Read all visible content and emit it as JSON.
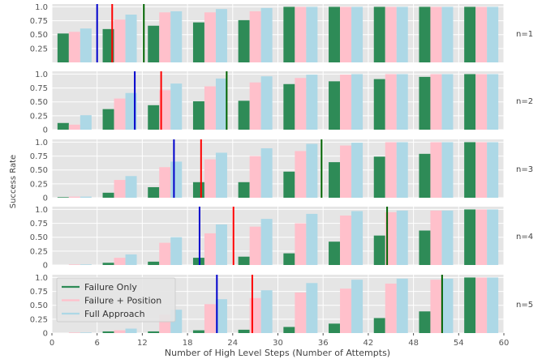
{
  "figure": {
    "xlabel": "Number of High Level Steps (Number of Attempts)",
    "ylabel": "Success Rate"
  },
  "chart_data": {
    "type": "bar",
    "xlim": [
      0,
      60
    ],
    "ylim": [
      0,
      1.05
    ],
    "xticks": [
      0,
      6,
      12,
      18,
      24,
      30,
      36,
      42,
      48,
      54,
      60
    ],
    "tick_labels_top": [
      "0.25",
      "0.50",
      "0.75",
      "1.0"
    ],
    "tick_labels_other": [
      "0",
      "0.25",
      "0.50",
      "0.75",
      "1.0"
    ],
    "grid": true,
    "legend": {
      "location": "upper-left (bottom panel)",
      "entries": [
        "Failure Only",
        "Failure + Position",
        "Full Approach"
      ]
    },
    "colors": {
      "Failure Only": "#2e8b57",
      "Failure + Position": "#ffc0cb",
      "Full Approach": "#add8e6"
    },
    "group_centers": [
      3,
      9,
      15,
      21,
      27,
      33,
      39,
      45,
      51,
      57
    ],
    "panels": [
      {
        "label": "n=1",
        "series": [
          {
            "name": "Failure Only",
            "values": [
              0.52,
              0.6,
              0.66,
              0.72,
              0.76,
              1.0,
              1.0,
              1.0,
              1.0,
              1.0
            ]
          },
          {
            "name": "Failure + Position",
            "values": [
              0.55,
              0.77,
              0.9,
              0.9,
              0.92,
              1.0,
              1.0,
              1.0,
              1.0,
              1.0
            ]
          },
          {
            "name": "Full Approach",
            "values": [
              0.61,
              0.86,
              0.92,
              0.96,
              0.98,
              1.0,
              1.0,
              1.0,
              1.0,
              1.0
            ]
          }
        ],
        "vlines": {
          "Failure Only": 12.2,
          "Failure + Position": 8.0,
          "Full Approach": 6.0
        }
      },
      {
        "label": "n=2",
        "series": [
          {
            "name": "Failure Only",
            "values": [
              0.12,
              0.37,
              0.44,
              0.51,
              0.52,
              0.82,
              0.87,
              0.91,
              0.95,
              1.0
            ]
          },
          {
            "name": "Failure + Position",
            "values": [
              0.09,
              0.56,
              0.71,
              0.78,
              0.85,
              0.93,
              0.99,
              1.0,
              1.0,
              1.0
            ]
          },
          {
            "name": "Full Approach",
            "values": [
              0.26,
              0.66,
              0.83,
              0.92,
              0.96,
              0.99,
              1.0,
              1.0,
              1.0,
              1.0
            ]
          }
        ],
        "vlines": {
          "Failure Only": 23.2,
          "Failure + Position": 14.5,
          "Full Approach": 11.0
        }
      },
      {
        "label": "n=3",
        "series": [
          {
            "name": "Failure Only",
            "values": [
              0.01,
              0.09,
              0.19,
              0.28,
              0.28,
              0.47,
              0.64,
              0.74,
              0.79,
              1.0
            ]
          },
          {
            "name": "Failure + Position",
            "values": [
              0.02,
              0.32,
              0.55,
              0.69,
              0.75,
              0.84,
              0.94,
              1.0,
              1.0,
              1.0
            ]
          },
          {
            "name": "Full Approach",
            "values": [
              0.02,
              0.39,
              0.65,
              0.81,
              0.89,
              0.97,
              0.99,
              1.0,
              1.0,
              1.0
            ]
          }
        ],
        "vlines": {
          "Failure Only": 35.8,
          "Failure + Position": 19.8,
          "Full Approach": 16.2
        }
      },
      {
        "label": "n=4",
        "series": [
          {
            "name": "Failure Only",
            "values": [
              0.0,
              0.04,
              0.06,
              0.13,
              0.15,
              0.21,
              0.42,
              0.53,
              0.62,
              1.0
            ]
          },
          {
            "name": "Failure + Position",
            "values": [
              0.01,
              0.13,
              0.4,
              0.57,
              0.69,
              0.75,
              0.89,
              0.95,
              0.98,
              1.0
            ]
          },
          {
            "name": "Full Approach",
            "values": [
              0.01,
              0.19,
              0.5,
              0.73,
              0.83,
              0.92,
              0.97,
              0.98,
              0.98,
              1.0
            ]
          }
        ],
        "vlines": {
          "Failure Only": 44.5,
          "Failure + Position": 24.1,
          "Full Approach": 19.6
        }
      },
      {
        "label": "n=5",
        "series": [
          {
            "name": "Failure Only",
            "values": [
              0.0,
              0.03,
              0.03,
              0.05,
              0.06,
              0.11,
              0.17,
              0.27,
              0.39,
              1.0
            ]
          },
          {
            "name": "Failure + Position",
            "values": [
              0.01,
              0.05,
              0.33,
              0.52,
              0.63,
              0.73,
              0.8,
              0.89,
              0.96,
              1.0
            ]
          },
          {
            "name": "Full Approach",
            "values": [
              0.01,
              0.08,
              0.42,
              0.61,
              0.77,
              0.9,
              0.96,
              0.98,
              0.98,
              1.0
            ]
          }
        ],
        "vlines": {
          "Failure Only": 51.8,
          "Failure + Position": 26.6,
          "Full Approach": 21.9
        }
      }
    ]
  }
}
